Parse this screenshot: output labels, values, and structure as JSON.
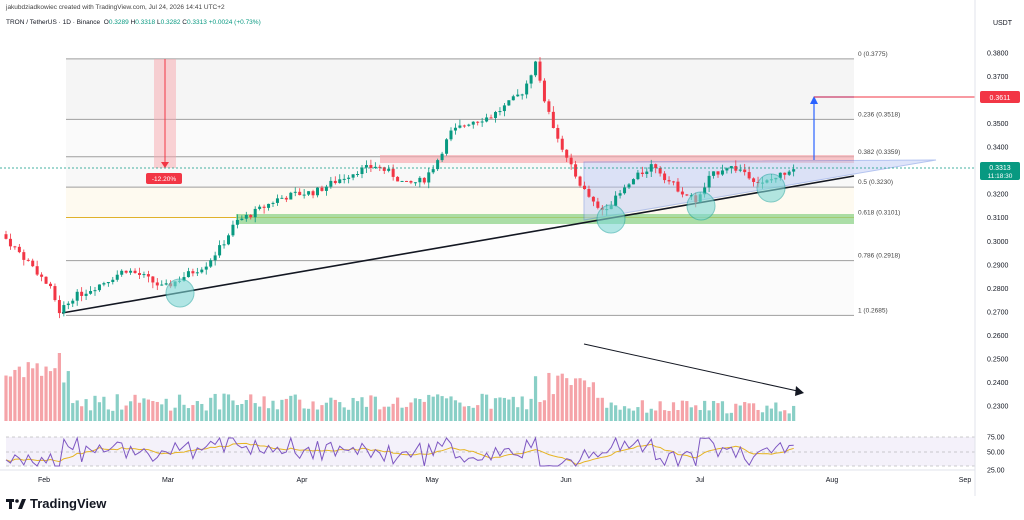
{
  "header": {
    "credit": "jakubdziadkowiec created with TradingView.com, Jul 24, 2026 14:41 UTC+2",
    "symbol": "TRON / TetherUS · 1D · Binance",
    "ohlc": {
      "o_label": "O",
      "o": "0.3289",
      "h_label": "H",
      "h": "0.3318",
      "l_label": "L",
      "l": "0.3282",
      "c_label": "C",
      "c": "0.3313",
      "change": "+0.0024 (+0.73%)"
    },
    "currency": "USDT"
  },
  "logo": {
    "text": "TradingView"
  },
  "chart_data": {
    "type": "candlestick",
    "y_ticks": [
      "0.3800",
      "0.3700",
      "0.3600",
      "0.3500",
      "0.3400",
      "0.3300",
      "0.3200",
      "0.3100",
      "0.3000",
      "0.2900",
      "0.2800",
      "0.2700",
      "0.2600",
      "0.2500",
      "0.2400",
      "0.2300"
    ],
    "x_labels": [
      "Feb",
      "Mar",
      "Apr",
      "May",
      "Jun",
      "Jul",
      "Aug",
      "Sep"
    ],
    "last_price": {
      "value": "0.3313",
      "countdown": "11:18:30",
      "color": "#089981"
    },
    "target_price": {
      "value": "0.3611",
      "color": "#f23645"
    },
    "drawdown_label": "-12.20%",
    "fib_levels": [
      {
        "label": "0 (0.3775)",
        "value": 0.3775
      },
      {
        "label": "0.236 (0.3518)",
        "value": 0.3518
      },
      {
        "label": "0.382 (0.3359)",
        "value": 0.3359
      },
      {
        "label": "0.5 (0.3230)",
        "value": 0.323
      },
      {
        "label": "0.618 (0.3101)",
        "value": 0.3101
      },
      {
        "label": "0.786 (0.2918)",
        "value": 0.2918
      },
      {
        "label": "1 (0.2685)",
        "value": 0.2685
      }
    ],
    "rsi_ticks": [
      "75.00",
      "50.00",
      "25.00"
    ],
    "colors": {
      "up": "#089981",
      "down": "#f23645",
      "vol_up": "#89cfc6",
      "vol_down": "#f5a3a8",
      "rsi": "#7e57c2",
      "rsi_ma": "#e6b422"
    }
  }
}
